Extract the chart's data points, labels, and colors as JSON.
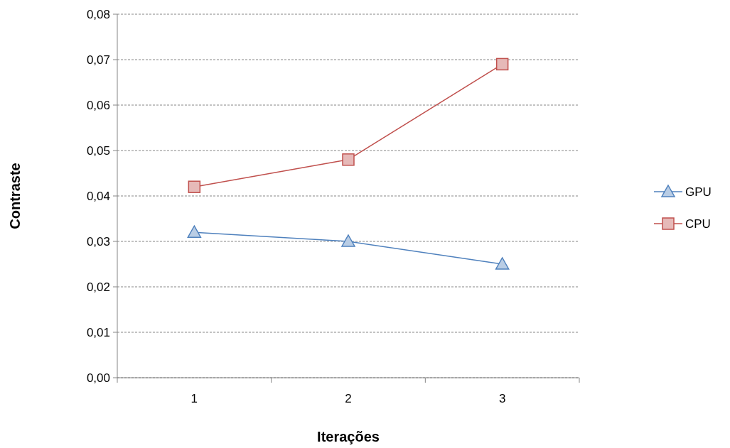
{
  "chart_data": {
    "type": "line",
    "xlabel": "Iterações",
    "ylabel": "Contraste",
    "categories": [
      "1",
      "2",
      "3"
    ],
    "series": [
      {
        "name": "GPU",
        "color": "#4f81bd",
        "marker": "triangle",
        "values": [
          0.032,
          0.03,
          0.025
        ]
      },
      {
        "name": "CPU",
        "color": "#c0504d",
        "marker": "square",
        "values": [
          0.042,
          0.048,
          0.069
        ]
      }
    ],
    "ylim": [
      0,
      0.08
    ],
    "yticks": [
      {
        "value": 0,
        "label": "0,00"
      },
      {
        "value": 0.01,
        "label": "0,01"
      },
      {
        "value": 0.02,
        "label": "0,02"
      },
      {
        "value": 0.03,
        "label": "0,03"
      },
      {
        "value": 0.04,
        "label": "0,04"
      },
      {
        "value": 0.05,
        "label": "0,05"
      },
      {
        "value": 0.06,
        "label": "0,06"
      },
      {
        "value": 0.07,
        "label": "0,07"
      },
      {
        "value": 0.08,
        "label": "0,08"
      }
    ],
    "grid": "y",
    "legend": "right"
  }
}
